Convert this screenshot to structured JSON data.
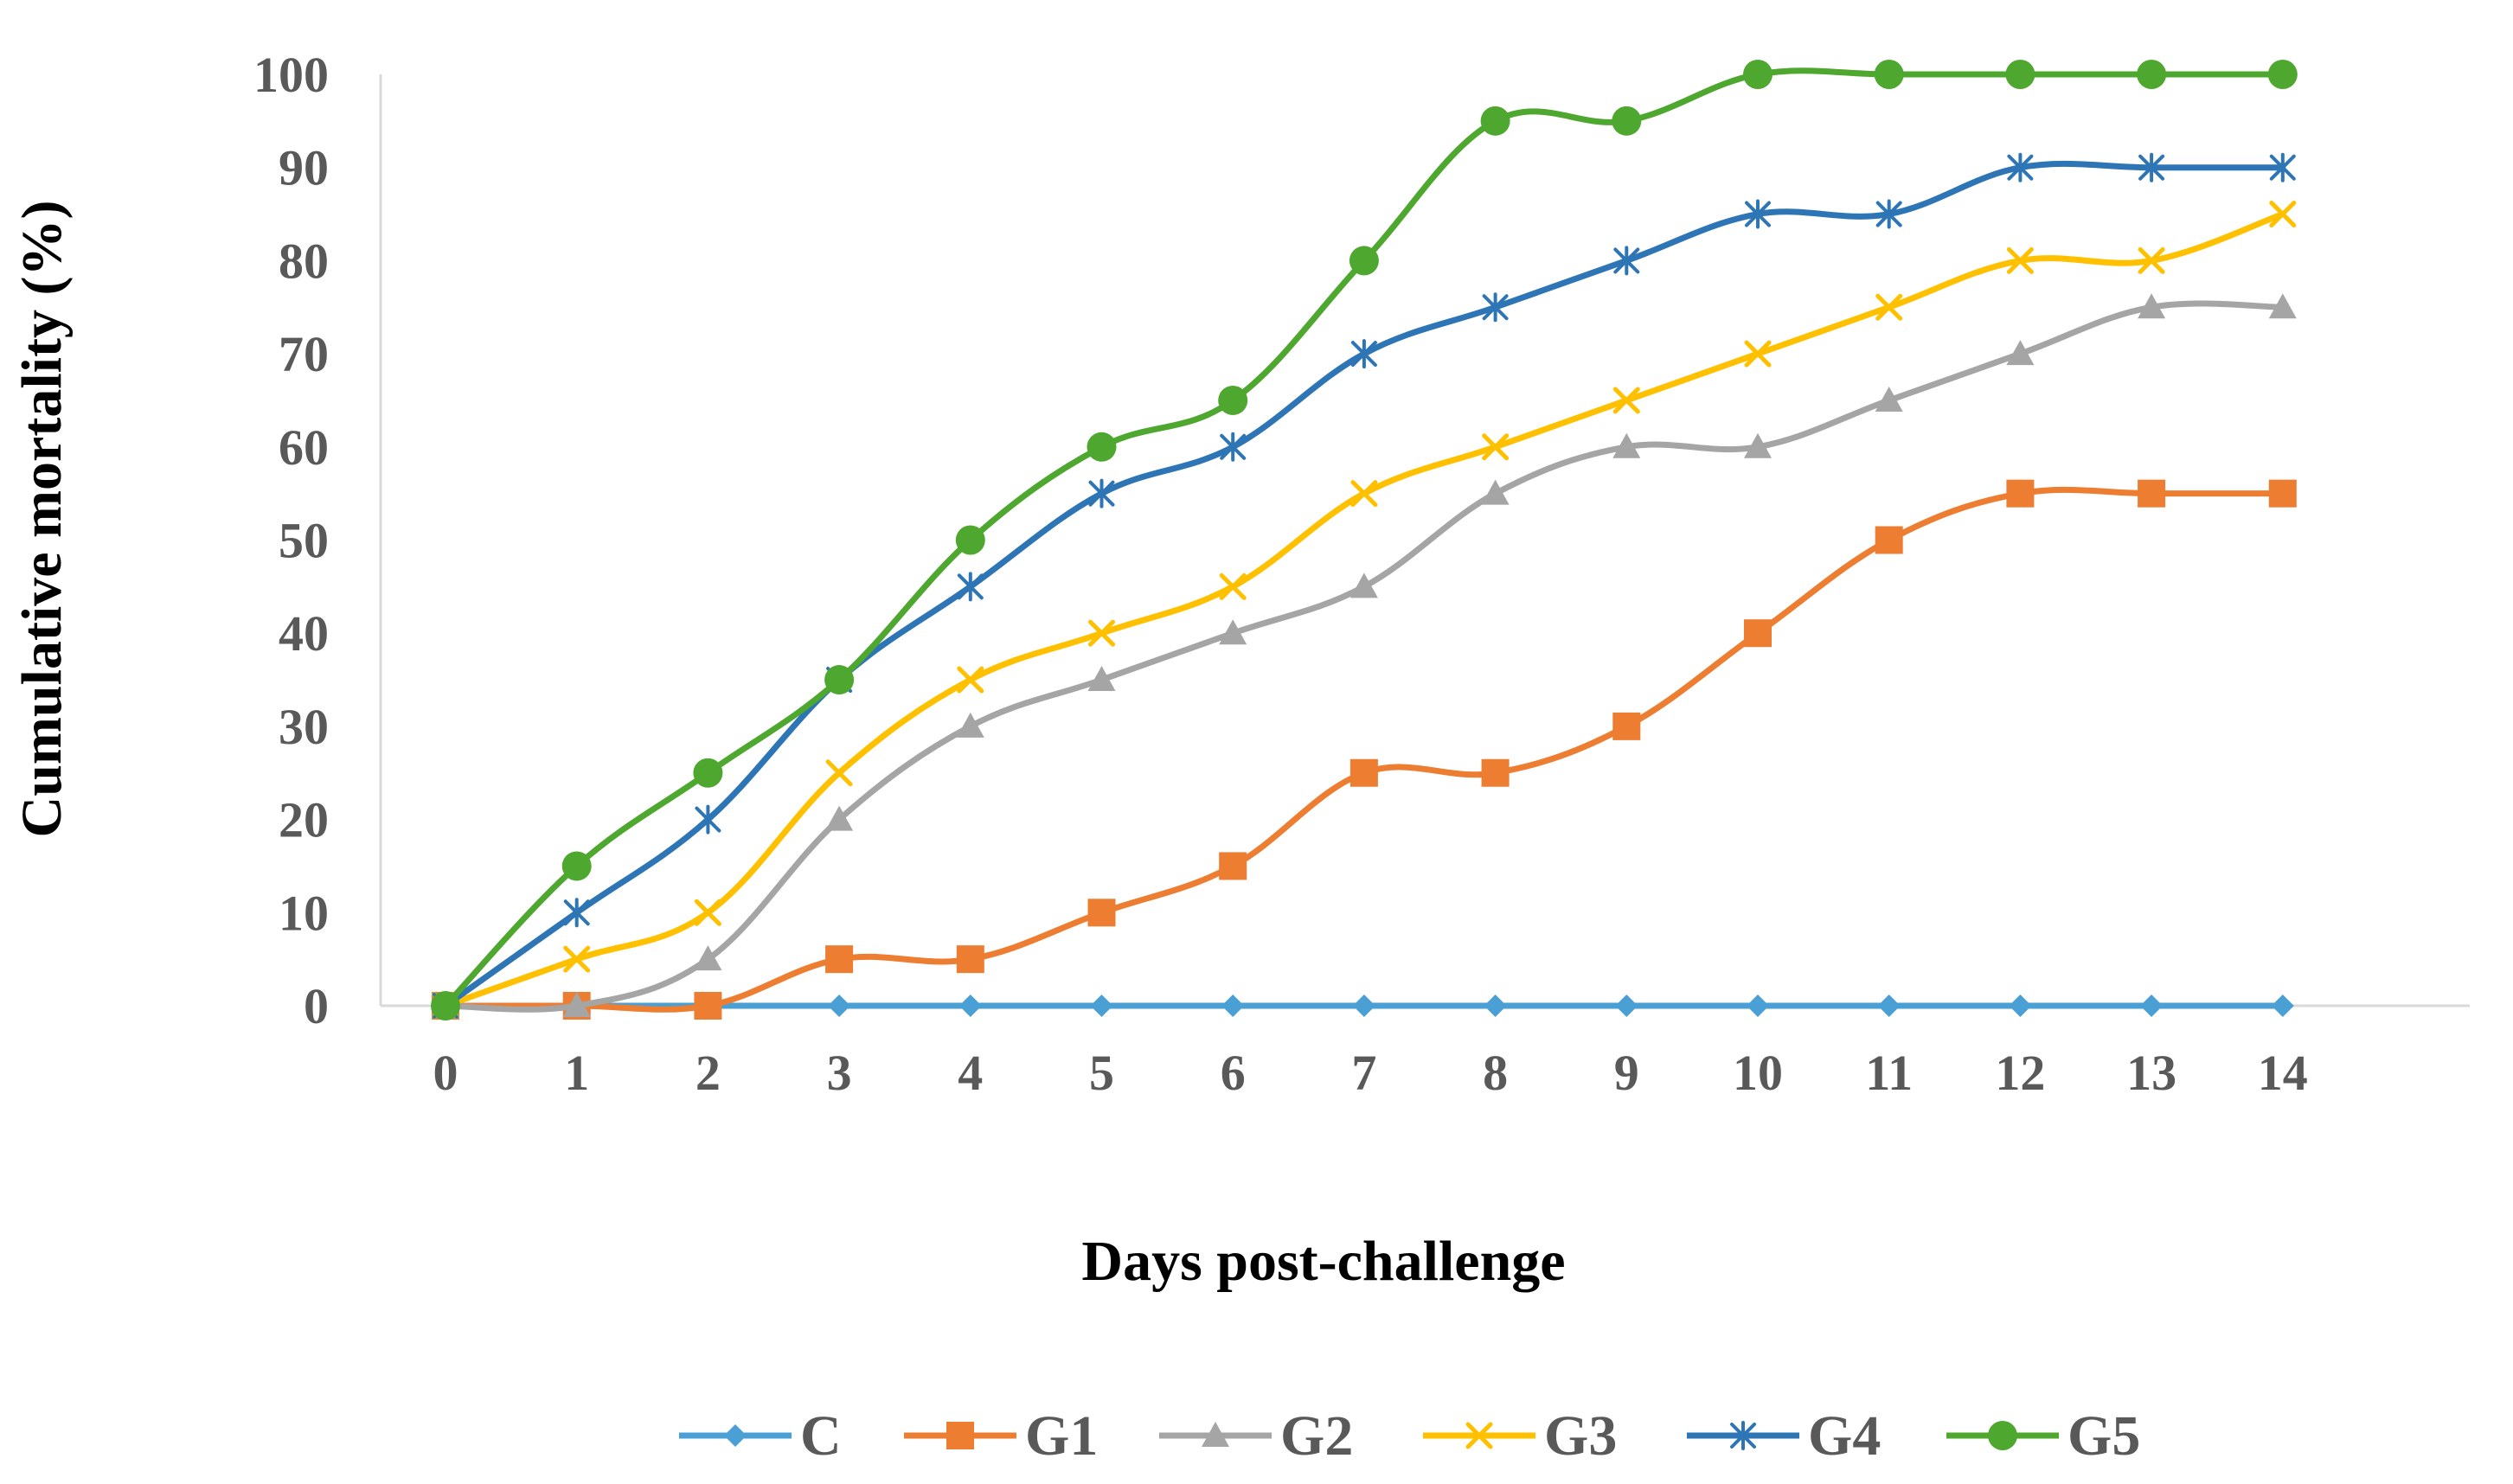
{
  "chart_data": {
    "type": "line",
    "title": "",
    "xlabel": "Days post-challenge",
    "ylabel": "Cumulative mortality (%)",
    "x": [
      0,
      1,
      2,
      3,
      4,
      5,
      6,
      7,
      8,
      9,
      10,
      11,
      12,
      13,
      14
    ],
    "xticks": [
      "0",
      "1",
      "2",
      "3",
      "4",
      "5",
      "6",
      "7",
      "8",
      "9",
      "10",
      "11",
      "12",
      "13",
      "14"
    ],
    "yticks": [
      "0",
      "10",
      "20",
      "30",
      "40",
      "50",
      "60",
      "70",
      "80",
      "90",
      "100"
    ],
    "ylim": [
      0,
      100
    ],
    "grid": false,
    "legend_position": "bottom",
    "series": [
      {
        "name": "C",
        "marker": "diamond",
        "color": "#4a9fd4",
        "values": [
          0,
          0,
          0,
          0,
          0,
          0,
          0,
          0,
          0,
          0,
          0,
          0,
          0,
          0,
          0
        ]
      },
      {
        "name": "G1",
        "marker": "square",
        "color": "#ed7d31",
        "values": [
          0,
          0,
          0,
          5,
          5,
          10,
          15,
          25,
          25,
          30,
          40,
          50,
          55,
          55,
          55
        ]
      },
      {
        "name": "G2",
        "marker": "triangle",
        "color": "#a5a5a5",
        "values": [
          0,
          0,
          5,
          20,
          30,
          35,
          40,
          45,
          55,
          60,
          60,
          65,
          70,
          75,
          75
        ]
      },
      {
        "name": "G3",
        "marker": "x",
        "color": "#ffc000",
        "values": [
          0,
          5,
          10,
          25,
          35,
          40,
          45,
          55,
          60,
          65,
          70,
          75,
          80,
          80,
          85
        ]
      },
      {
        "name": "G4",
        "marker": "asterisk",
        "color": "#2e75b6",
        "values": [
          0,
          10,
          20,
          35,
          45,
          55,
          60,
          70,
          75,
          80,
          85,
          85,
          90,
          90,
          90
        ]
      },
      {
        "name": "G5",
        "marker": "circle",
        "color": "#4ea72e",
        "values": [
          0,
          15,
          25,
          35,
          50,
          60,
          65,
          80,
          95,
          95,
          100,
          100,
          100,
          100,
          100
        ]
      }
    ]
  }
}
